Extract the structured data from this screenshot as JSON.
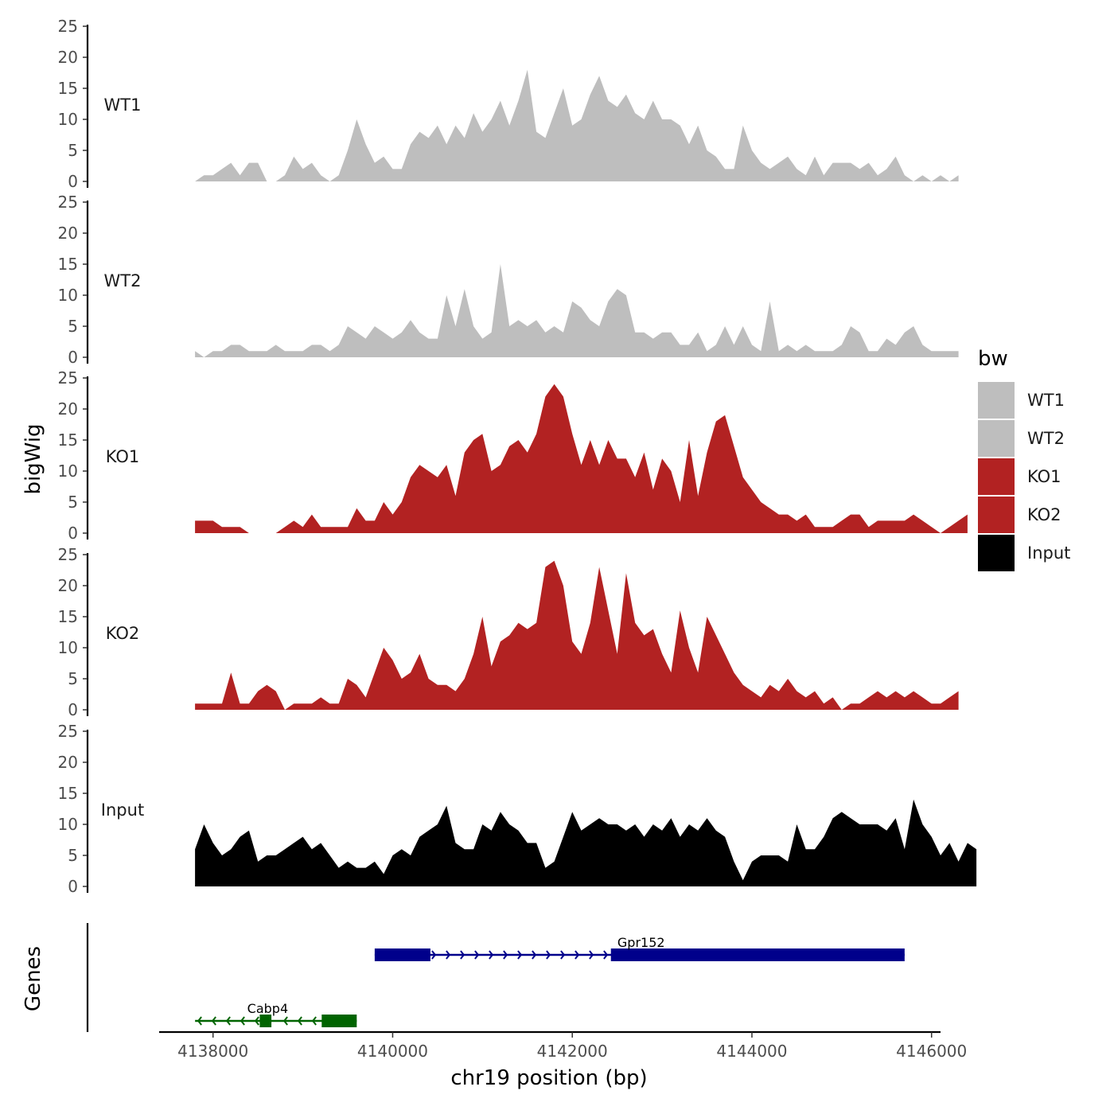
{
  "chart_data": {
    "type": "area",
    "ylabel": "bigWig",
    "xlabel": "chr19 position (bp)",
    "ylim": [
      0,
      25
    ],
    "yticks": [
      0,
      5,
      10,
      15,
      20,
      25
    ],
    "xlim": [
      4137400,
      4146100
    ],
    "xticks": [
      4138000,
      4140000,
      4142000,
      4144000,
      4146000
    ],
    "xtick_labels": [
      "4138000",
      "4140000",
      "4142000",
      "4144000",
      "4146000"
    ],
    "region": [
      4137800,
      4145700
    ],
    "legend": {
      "title": "bw",
      "position": "right",
      "entries": [
        {
          "label": "WT1",
          "color": "#bebebe"
        },
        {
          "label": "WT2",
          "color": "#bebebe"
        },
        {
          "label": "KO1",
          "color": "#b22222"
        },
        {
          "label": "KO2",
          "color": "#b22222"
        },
        {
          "label": "Input",
          "color": "#000000"
        }
      ]
    },
    "series": [
      {
        "name": "WT1",
        "color": "#bebebe",
        "start": 4137800,
        "step": 100,
        "values": [
          0,
          1,
          1,
          2,
          3,
          1,
          3,
          3,
          0,
          0,
          1,
          4,
          2,
          3,
          1,
          0,
          1,
          5,
          10,
          6,
          3,
          4,
          2,
          2,
          6,
          8,
          7,
          9,
          6,
          9,
          7,
          11,
          8,
          10,
          13,
          9,
          13,
          18,
          8,
          7,
          11,
          15,
          9,
          10,
          14,
          17,
          13,
          12,
          14,
          11,
          10,
          13,
          10,
          10,
          9,
          6,
          9,
          5,
          4,
          2,
          2,
          9,
          5,
          3,
          2,
          3,
          4,
          2,
          1,
          4,
          1,
          3,
          3,
          3,
          2,
          3,
          1,
          2,
          4,
          1,
          0,
          1,
          0,
          1,
          0,
          1
        ]
      },
      {
        "name": "WT2",
        "color": "#bebebe",
        "start": 4137800,
        "step": 100,
        "values": [
          1,
          0,
          1,
          1,
          2,
          2,
          1,
          1,
          1,
          2,
          1,
          1,
          1,
          2,
          2,
          1,
          2,
          5,
          4,
          3,
          5,
          4,
          3,
          4,
          6,
          4,
          3,
          3,
          10,
          5,
          11,
          5,
          3,
          4,
          15,
          5,
          6,
          5,
          6,
          4,
          5,
          4,
          9,
          8,
          6,
          5,
          9,
          11,
          10,
          4,
          4,
          3,
          4,
          4,
          2,
          2,
          4,
          1,
          2,
          5,
          2,
          5,
          2,
          1,
          9,
          1,
          2,
          1,
          2,
          1,
          1,
          1,
          2,
          5,
          4,
          1,
          1,
          3,
          2,
          4,
          5,
          2,
          1,
          1,
          1,
          1
        ]
      },
      {
        "name": "KO1",
        "color": "#b22222",
        "start": 4137800,
        "step": 100,
        "values": [
          2,
          2,
          2,
          1,
          1,
          1,
          0,
          0,
          0,
          0,
          1,
          2,
          1,
          3,
          1,
          1,
          1,
          1,
          4,
          2,
          2,
          5,
          3,
          5,
          9,
          11,
          10,
          9,
          11,
          6,
          13,
          15,
          16,
          10,
          11,
          14,
          15,
          13,
          16,
          22,
          24,
          22,
          16,
          11,
          15,
          11,
          15,
          12,
          12,
          9,
          13,
          7,
          12,
          10,
          5,
          15,
          6,
          13,
          18,
          19,
          14,
          9,
          7,
          5,
          4,
          3,
          3,
          2,
          3,
          1,
          1,
          1,
          2,
          3,
          3,
          1,
          2,
          2,
          2,
          2,
          3,
          2,
          1,
          0,
          1,
          2,
          3
        ]
      },
      {
        "name": "KO2",
        "color": "#b22222",
        "start": 4137800,
        "step": 100,
        "values": [
          1,
          1,
          1,
          1,
          6,
          1,
          1,
          3,
          4,
          3,
          0,
          1,
          1,
          1,
          2,
          1,
          1,
          5,
          4,
          2,
          6,
          10,
          8,
          5,
          6,
          9,
          5,
          4,
          4,
          3,
          5,
          9,
          15,
          7,
          11,
          12,
          14,
          13,
          14,
          23,
          24,
          20,
          11,
          9,
          14,
          23,
          16,
          9,
          22,
          14,
          12,
          13,
          9,
          6,
          16,
          10,
          6,
          15,
          12,
          9,
          6,
          4,
          3,
          2,
          4,
          3,
          5,
          3,
          2,
          3,
          1,
          2,
          0,
          1,
          1,
          2,
          3,
          2,
          3,
          2,
          3,
          2,
          1,
          1,
          2,
          3
        ]
      },
      {
        "name": "Input",
        "color": "#000000",
        "start": 4137800,
        "step": 100,
        "values": [
          6,
          10,
          7,
          5,
          6,
          8,
          9,
          4,
          5,
          5,
          6,
          7,
          8,
          6,
          7,
          5,
          3,
          4,
          3,
          3,
          4,
          2,
          5,
          6,
          5,
          8,
          9,
          10,
          13,
          7,
          6,
          6,
          10,
          9,
          12,
          10,
          9,
          7,
          7,
          3,
          4,
          8,
          12,
          9,
          10,
          11,
          10,
          10,
          9,
          10,
          8,
          10,
          9,
          11,
          8,
          10,
          9,
          11,
          9,
          8,
          4,
          1,
          4,
          5,
          5,
          5,
          4,
          10,
          6,
          6,
          8,
          11,
          12,
          11,
          10,
          10,
          10,
          9,
          11,
          6,
          14,
          10,
          8,
          5,
          7,
          4,
          7,
          6
        ]
      }
    ],
    "genes": [
      {
        "name": "Gpr152",
        "strand": "+",
        "color": "#00008b",
        "row": 1,
        "start": 4139800,
        "end": 4145700,
        "exons": [
          [
            4139800,
            4140420
          ],
          [
            4142430,
            4145700
          ]
        ]
      },
      {
        "name": "Cabp4",
        "strand": "-",
        "color": "#006400",
        "row": 2,
        "start": 4137800,
        "end": 4139600,
        "exons": [
          [
            4138520,
            4138650
          ],
          [
            4139210,
            4139600
          ]
        ]
      }
    ],
    "genes_label": "Genes"
  }
}
